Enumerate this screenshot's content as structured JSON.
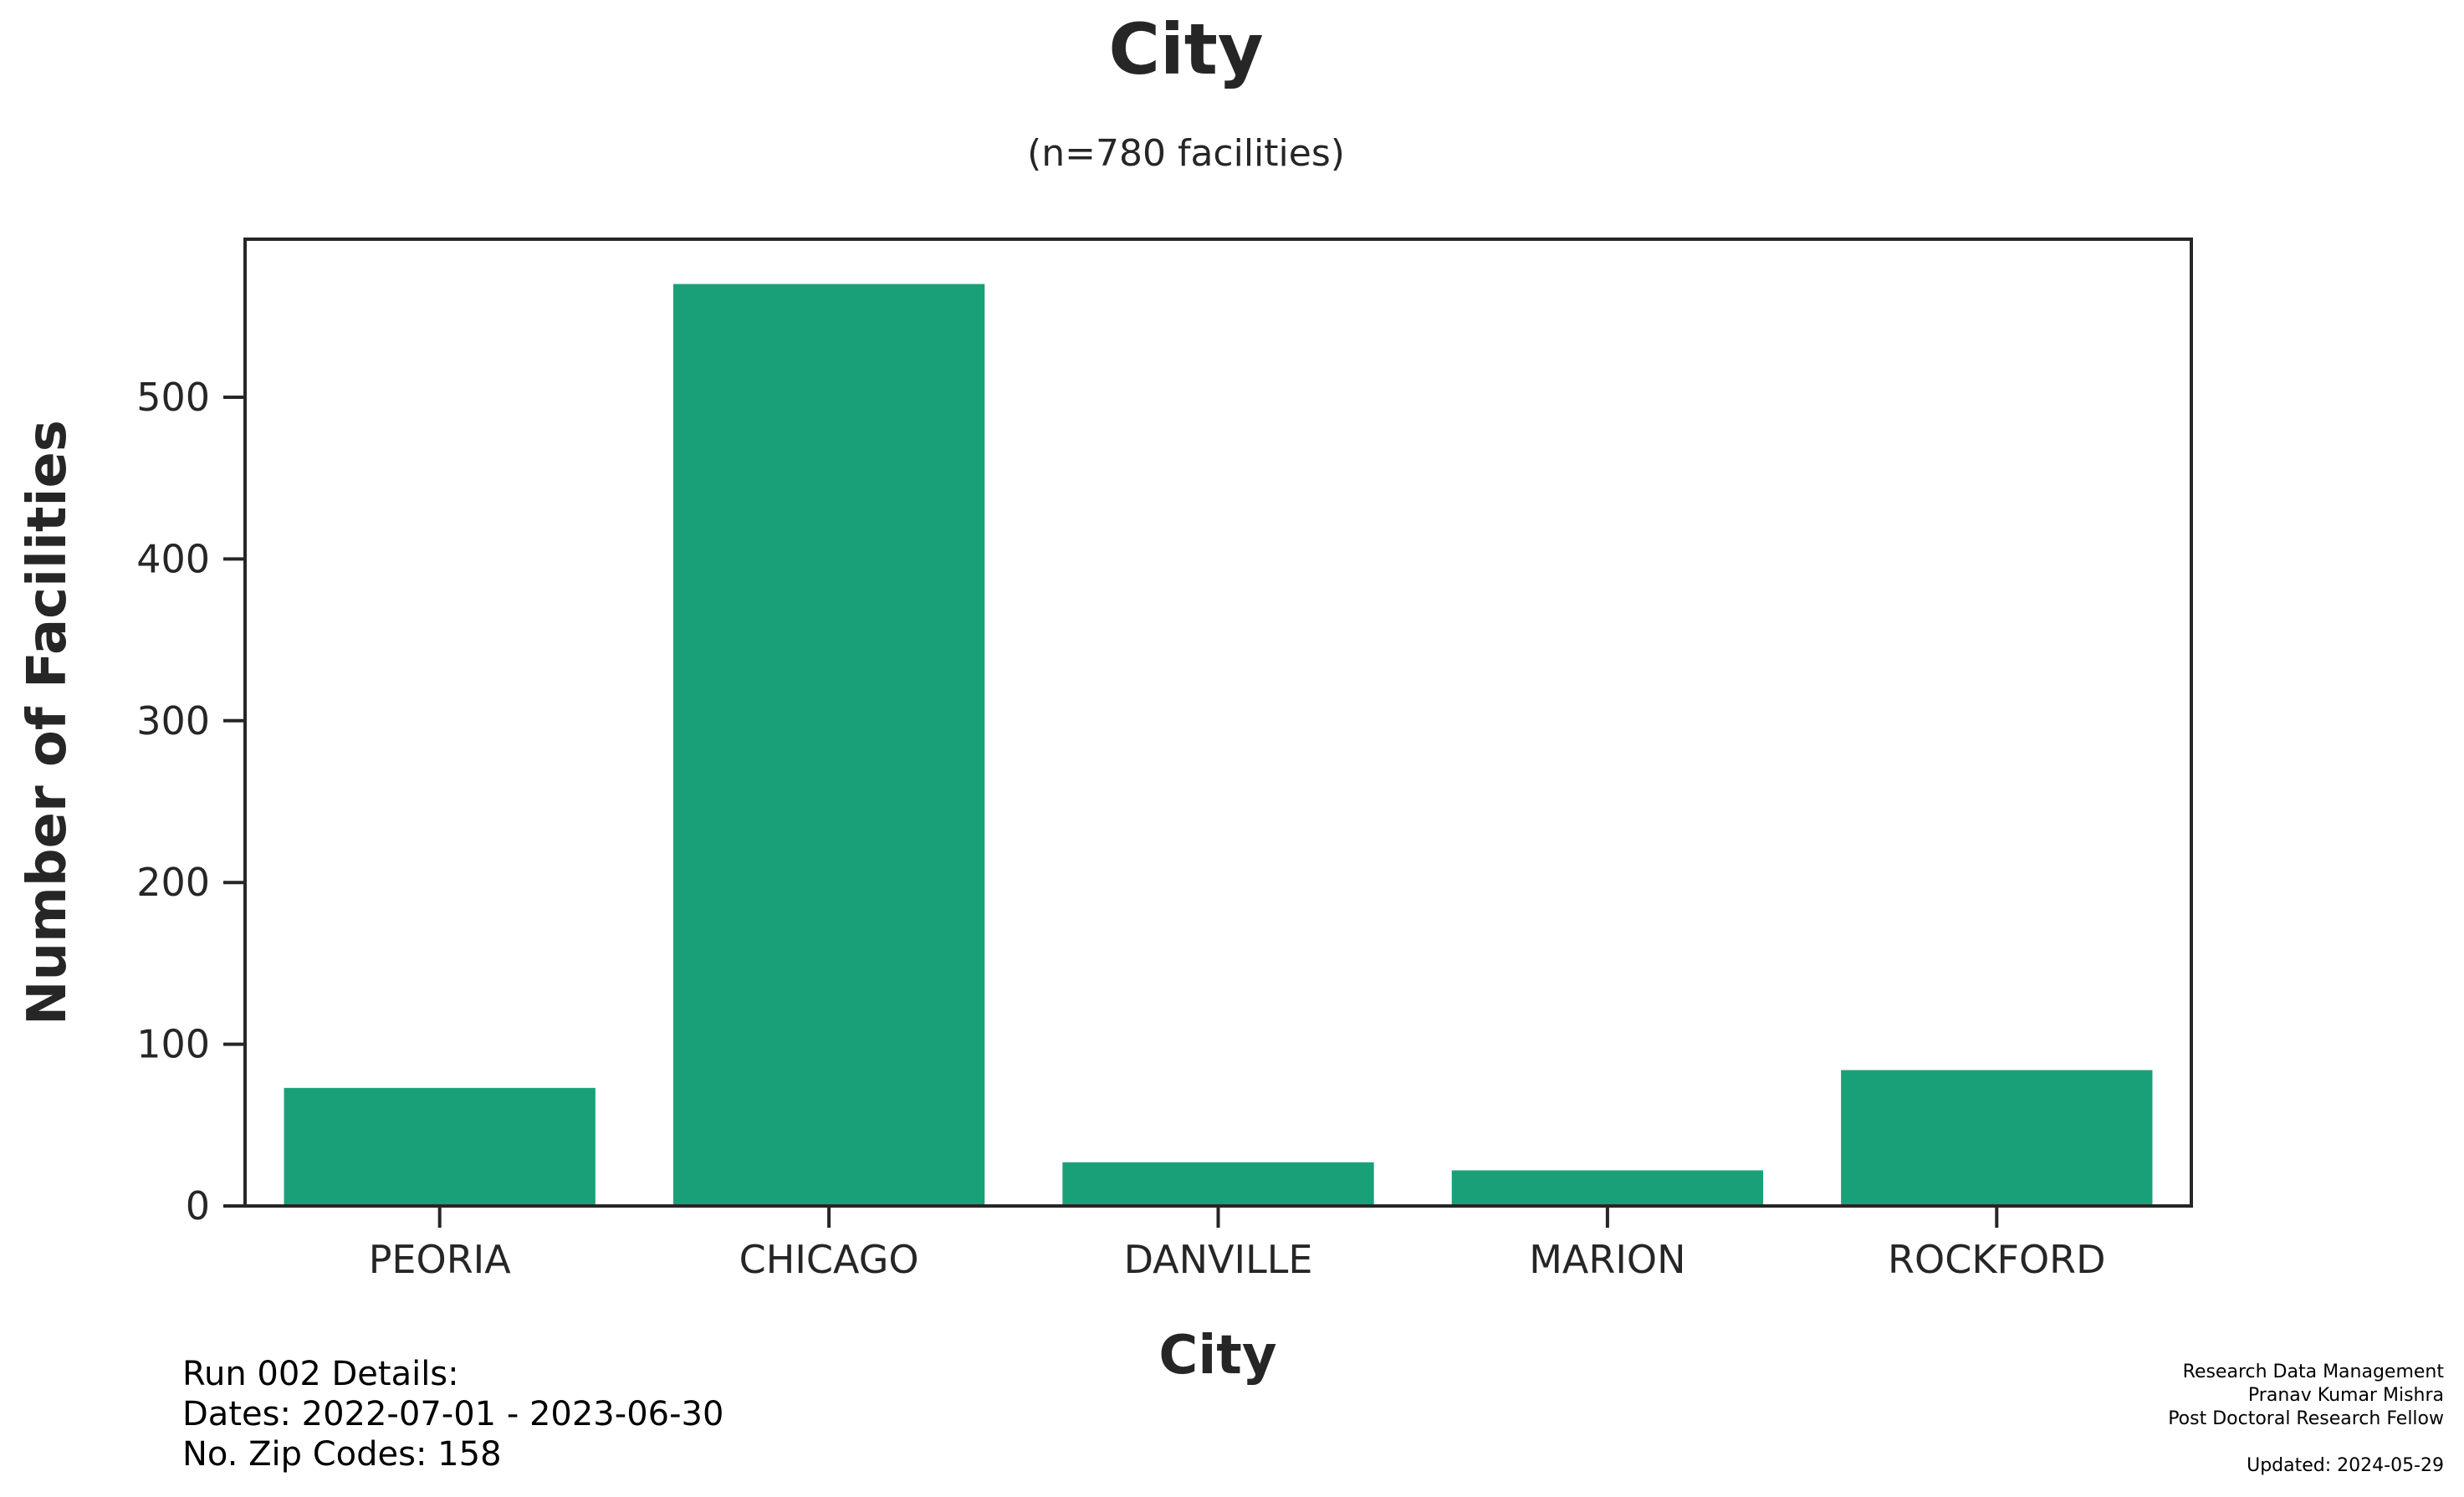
{
  "chart_data": {
    "type": "bar",
    "title": "City",
    "subtitle": "(n=780 facilities)",
    "xlabel": "City",
    "ylabel": "Number of Facilities",
    "categories": [
      "PEORIA",
      "CHICAGO",
      "DANVILLE",
      "MARION",
      "ROCKFORD"
    ],
    "values": [
      73,
      570,
      27,
      22,
      84
    ],
    "ylim": [
      0,
      600
    ],
    "yticks": [
      0,
      100,
      200,
      300,
      400,
      500
    ],
    "bar_color": "#19a078",
    "grid": false,
    "legend": "none"
  },
  "footer": {
    "run_details": {
      "line1": "Run 002 Details:",
      "line2": "Dates: 2022-07-01 - 2023-06-30",
      "line3": "No. Zip Codes: 158"
    },
    "credits": {
      "line1": "Research Data Management",
      "line2": "Pranav Kumar Mishra",
      "line3": "Post Doctoral Research Fellow",
      "updated": "Updated: 2024-05-29"
    }
  }
}
